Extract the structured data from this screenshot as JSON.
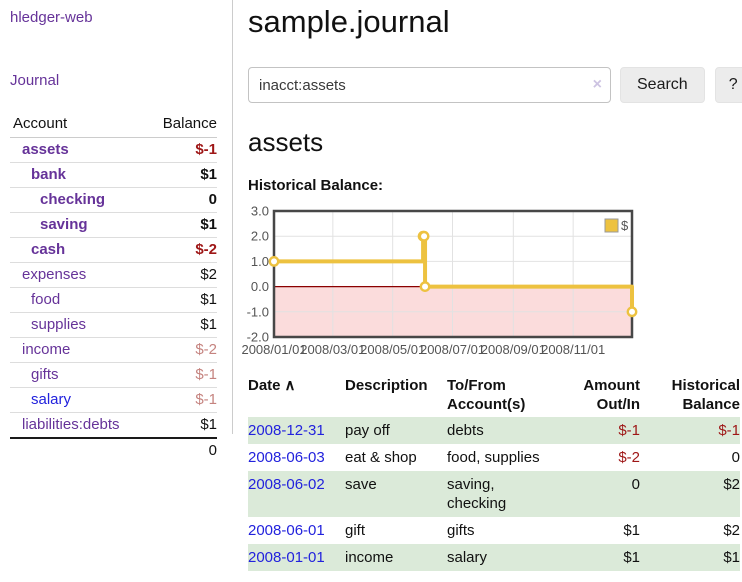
{
  "app": {
    "title": "hledger-web",
    "journal_link": "Journal"
  },
  "sidebar": {
    "headers": {
      "account": "Account",
      "balance": "Balance"
    },
    "accounts": [
      {
        "name": "assets",
        "indent": 1,
        "balance": "$-1",
        "bold": true,
        "neg": "strong"
      },
      {
        "name": "bank",
        "indent": 2,
        "balance": "$1",
        "bold": true
      },
      {
        "name": "checking",
        "indent": 3,
        "balance": "0",
        "bold": true
      },
      {
        "name": "saving",
        "indent": 3,
        "balance": "$1",
        "bold": true
      },
      {
        "name": "cash",
        "indent": 2,
        "balance": "$-2",
        "bold": true,
        "neg": "strong"
      },
      {
        "name": "expenses",
        "indent": 1,
        "balance": "$2"
      },
      {
        "name": "food",
        "indent": 2,
        "balance": "$1"
      },
      {
        "name": "supplies",
        "indent": 2,
        "balance": "$1"
      },
      {
        "name": "income",
        "indent": 1,
        "balance": "$-2",
        "neg": "soft"
      },
      {
        "name": "gifts",
        "indent": 2,
        "balance": "$-1",
        "neg": "soft"
      },
      {
        "name": "salary",
        "indent": 2,
        "balance": "$-1",
        "neg": "soft",
        "blue": true
      },
      {
        "name": "liabilities:debts",
        "indent": 1,
        "balance": "$1"
      }
    ],
    "total": "0"
  },
  "header": {
    "title": "sample.journal"
  },
  "search": {
    "value": "inacct:assets",
    "clear_icon": "×",
    "search_button": "Search",
    "help_button": "?"
  },
  "main": {
    "account_heading": "assets",
    "chart_title": "Historical Balance:"
  },
  "chart_data": {
    "type": "line",
    "step": true,
    "title": "Historical Balance:",
    "series": [
      {
        "name": "$",
        "points": [
          {
            "date": "2008-01-01",
            "value": 1
          },
          {
            "date": "2008-06-01",
            "value": 2
          },
          {
            "date": "2008-06-02",
            "value": 2
          },
          {
            "date": "2008-06-03",
            "value": 0
          },
          {
            "date": "2008-12-31",
            "value": -1
          }
        ]
      }
    ],
    "ylim": [
      -2,
      3
    ],
    "yticks": [
      3,
      2,
      1,
      0,
      -1,
      -2
    ],
    "xlim": [
      "2008-01-01",
      "2008-12-31"
    ],
    "xticks": [
      {
        "date": "2008-01-01",
        "label": "2008/01/01"
      },
      {
        "date": "2008-03-01",
        "label": "2008/03/01"
      },
      {
        "date": "2008-05-01",
        "label": "2008/05/01"
      },
      {
        "date": "2008-07-01",
        "label": "2008/07/01"
      },
      {
        "date": "2008-09-01",
        "label": "2008/09/01"
      },
      {
        "date": "2008-11-01",
        "label": "2008/11/01"
      }
    ],
    "legend": {
      "label": "$",
      "position": "top-right"
    },
    "grid": true,
    "negative_region_shaded": true
  },
  "register": {
    "columns": [
      {
        "lines": [
          "Date"
        ],
        "sort_icon": "∧",
        "align": "left"
      },
      {
        "lines": [
          "Description"
        ],
        "align": "left"
      },
      {
        "lines": [
          "To/From",
          "Account(s)"
        ],
        "align": "left"
      },
      {
        "lines": [
          "Amount",
          "Out/In"
        ],
        "align": "right"
      },
      {
        "lines": [
          "Historical",
          "Balance"
        ],
        "align": "right"
      }
    ],
    "rows": [
      {
        "date": "2008-12-31",
        "description": "pay off",
        "accounts": "debts",
        "amount": "$-1",
        "amount_neg": true,
        "balance": "$-1",
        "balance_neg": true,
        "shaded": true
      },
      {
        "date": "2008-06-03",
        "description": "eat & shop",
        "accounts": "food, supplies",
        "amount": "$-2",
        "amount_neg": true,
        "balance": "0",
        "balance_neg": false,
        "shaded": false
      },
      {
        "date": "2008-06-02",
        "description": "save",
        "accounts": "saving, checking",
        "amount": "0",
        "amount_neg": false,
        "balance": "$2",
        "balance_neg": false,
        "shaded": true
      },
      {
        "date": "2008-06-01",
        "description": "gift",
        "accounts": "gifts",
        "amount": "$1",
        "amount_neg": false,
        "balance": "$2",
        "balance_neg": false,
        "shaded": false
      },
      {
        "date": "2008-01-01",
        "description": "income",
        "accounts": "salary",
        "amount": "$1",
        "amount_neg": false,
        "balance": "$1",
        "balance_neg": false,
        "shaded": true
      }
    ]
  },
  "colors": {
    "link_purple": "#663399",
    "link_blue": "#2222dd",
    "negative_strong": "#9e1616",
    "negative_soft": "#c5837f",
    "row_green": "#dbead9",
    "chart_line": "#edc240",
    "chart_negative_fill": "#fbdcdc",
    "chart_zero_line": "#8b0000",
    "chart_border": "#474747",
    "chart_grid": "#e2e2e2",
    "button_bg": "#ececec"
  }
}
